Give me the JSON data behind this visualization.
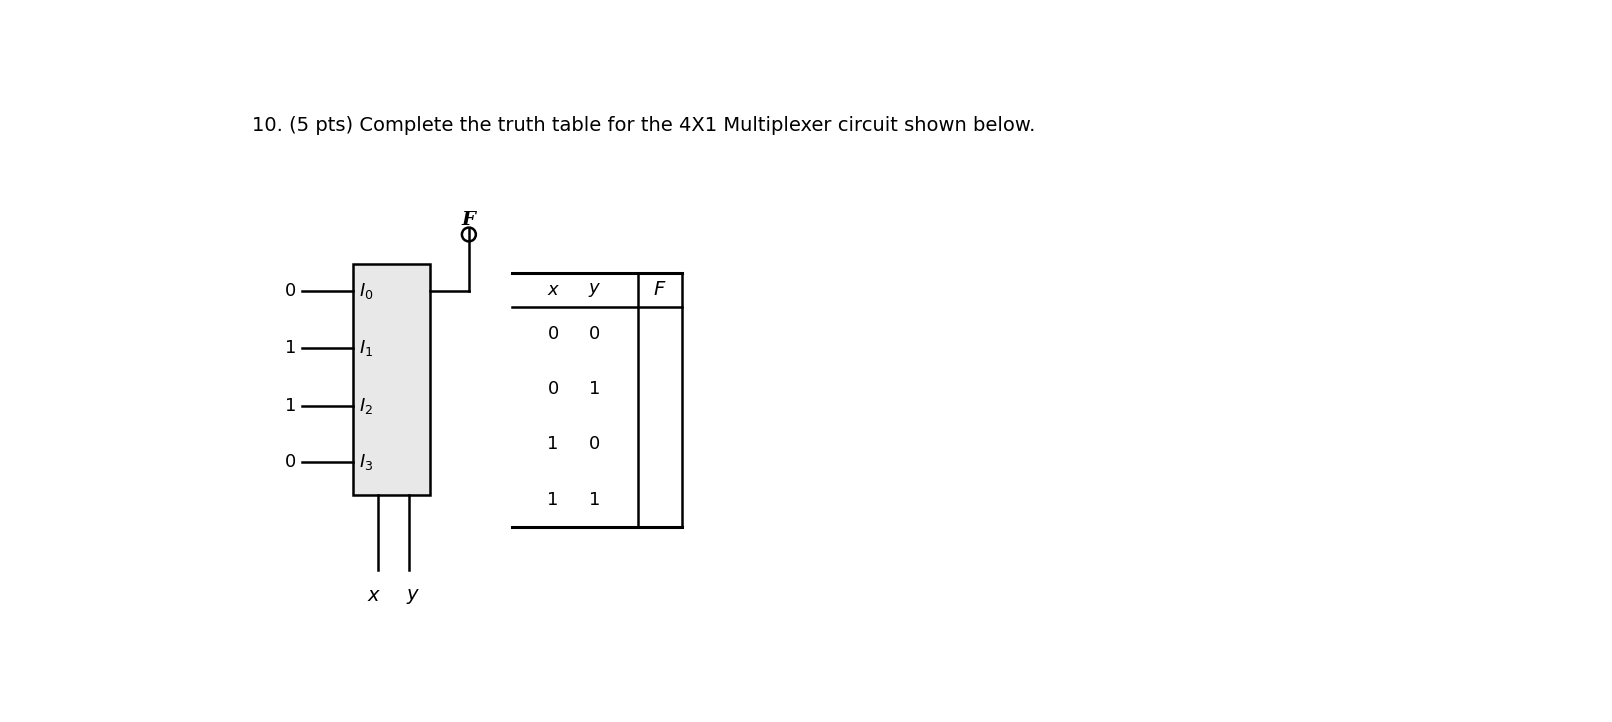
{
  "title": "10. (5 pts) Complete the truth table for the 4X1 Multiplexer circuit shown below.",
  "title_fontsize": 14,
  "bg_color": "#ffffff",
  "input_vals": [
    "0",
    "1",
    "1",
    "0"
  ],
  "input_labels": [
    "$I_0$",
    "$I_1$",
    "$I_2$",
    "$I_3$"
  ],
  "output_label": "F",
  "select_labels": [
    "x",
    "y"
  ],
  "table_headers": [
    "x",
    "y",
    "F"
  ],
  "table_rows": [
    [
      "0",
      "0",
      ""
    ],
    [
      "0",
      "1",
      ""
    ],
    [
      "1",
      "0",
      ""
    ],
    [
      "1",
      "1",
      ""
    ]
  ],
  "box_facecolor": "#e8e8e8",
  "box_edgecolor": "#000000",
  "line_color": "#000000"
}
